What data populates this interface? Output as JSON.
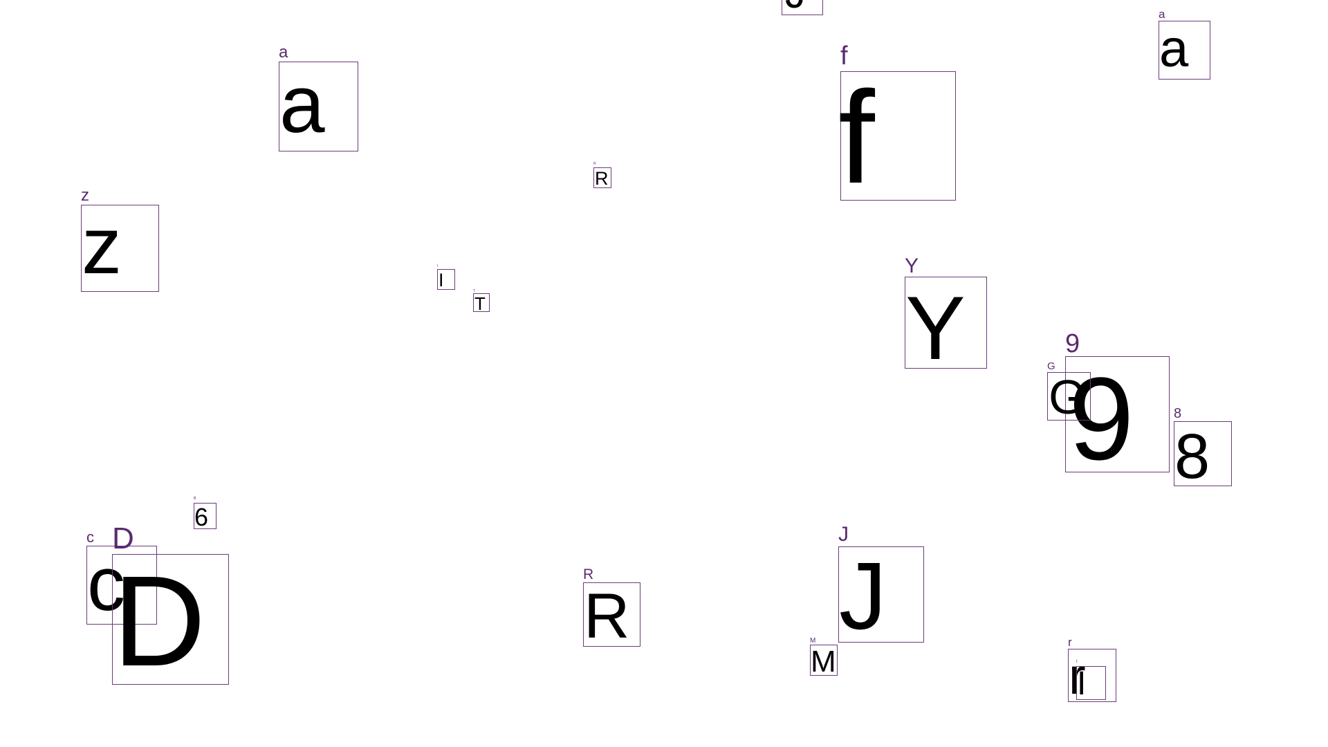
{
  "colors": {
    "box_border": "#6b3a78",
    "tag_text": "#5a2a6e",
    "glyph_text": "#000000",
    "background": "#ffffff"
  },
  "items": [
    {
      "glyph": "J",
      "tag": "J"
    },
    {
      "glyph": "a",
      "tag": "a"
    },
    {
      "glyph": "f",
      "tag": "f"
    },
    {
      "glyph": "a",
      "tag": "a"
    },
    {
      "glyph": "R",
      "tag": "R"
    },
    {
      "glyph": "z",
      "tag": "z"
    },
    {
      "glyph": "I",
      "tag": "I"
    },
    {
      "glyph": "T",
      "tag": "T"
    },
    {
      "glyph": "Y",
      "tag": "Y"
    },
    {
      "glyph": "9",
      "tag": "9"
    },
    {
      "glyph": "G",
      "tag": "G"
    },
    {
      "glyph": "8",
      "tag": "8"
    },
    {
      "glyph": "6",
      "tag": "6"
    },
    {
      "glyph": "c",
      "tag": "c"
    },
    {
      "glyph": "D",
      "tag": "D"
    },
    {
      "glyph": "R",
      "tag": "R"
    },
    {
      "glyph": "J",
      "tag": "J"
    },
    {
      "glyph": "M",
      "tag": "M"
    },
    {
      "glyph": "r",
      "tag": "r"
    },
    {
      "glyph": "I",
      "tag": "I"
    }
  ]
}
